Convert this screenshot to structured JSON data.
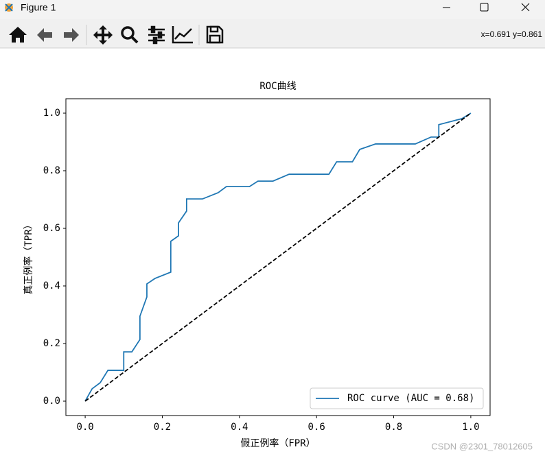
{
  "window": {
    "title": "Figure 1",
    "coordinates": "x=0.691 y=0.861",
    "watermark": "CSDN @2301_78012605"
  },
  "chart_data": {
    "type": "line",
    "title": "ROC曲线",
    "x_label": "假正例率（FPR）",
    "y_label": "真正例率（TPR）",
    "xlim": [
      -0.05,
      1.05
    ],
    "ylim": [
      -0.05,
      1.05
    ],
    "xticks": [
      {
        "value": 0,
        "label": "0.0"
      },
      0.2,
      0.4,
      0.6,
      0.8,
      {
        "value": 1,
        "label": "1.0"
      }
    ],
    "yticks": [
      {
        "value": 0,
        "label": "0.0"
      },
      0.2,
      0.4,
      0.6,
      0.8,
      {
        "value": 1,
        "label": "1.0"
      }
    ],
    "legend": "lower right",
    "series": [
      {
        "name": "ROC curve (AUC = 0.68)",
        "color": "#1f77b4",
        "x": [
          0,
          0.018,
          0.039,
          0.059,
          0.1,
          0.1,
          0.121,
          0.142,
          0.142,
          0.16,
          0.16,
          0.181,
          0.222,
          0.222,
          0.242,
          0.242,
          0.263,
          0.263,
          0.304,
          0.345,
          0.366,
          0.426,
          0.448,
          0.487,
          0.529,
          0.632,
          0.652,
          0.693,
          0.712,
          0.753,
          0.856,
          0.897,
          0.917,
          0.917,
          0.977,
          1
        ],
        "values": [
          0,
          0.043,
          0.064,
          0.107,
          0.107,
          0.171,
          0.171,
          0.214,
          0.295,
          0.362,
          0.407,
          0.426,
          0.448,
          0.555,
          0.574,
          0.619,
          0.66,
          0.702,
          0.702,
          0.724,
          0.745,
          0.745,
          0.764,
          0.764,
          0.788,
          0.788,
          0.831,
          0.831,
          0.874,
          0.893,
          0.893,
          0.917,
          0.917,
          0.96,
          0.981,
          1
        ]
      },
      {
        "color": "#000000",
        "dashed": true,
        "x": [
          0,
          1
        ],
        "values": [
          0,
          1
        ]
      }
    ]
  }
}
